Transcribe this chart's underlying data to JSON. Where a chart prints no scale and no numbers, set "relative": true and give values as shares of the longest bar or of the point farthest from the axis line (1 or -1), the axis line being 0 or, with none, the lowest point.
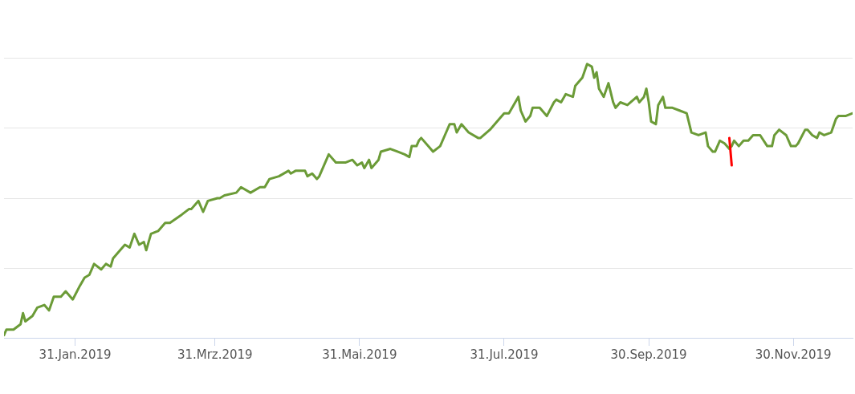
{
  "chart_data": {
    "type": "line",
    "relative": true,
    "grid": "y",
    "legend": false,
    "marker": "none",
    "line_style": "solid",
    "xlim": [
      "2019-01-01",
      "2019-12-25"
    ],
    "xticks": [
      {
        "value": "2019-01-31",
        "label": "31.Jan.2019"
      },
      {
        "value": "2019-03-31",
        "label": "31.Mrz.2019"
      },
      {
        "value": "2019-05-31",
        "label": "31.Mai.2019"
      },
      {
        "value": "2019-07-31",
        "label": "31.Jul.2019"
      },
      {
        "value": "2019-09-30",
        "label": "30.Sep.2019"
      },
      {
        "value": "2019-11-30",
        "label": "30.Nov.2019"
      }
    ],
    "series": [
      {
        "color": "#6b9b37",
        "x": [
          "2019-01-01",
          "2019-01-02",
          "2019-01-05",
          "2019-01-08",
          "2019-01-09",
          "2019-01-10",
          "2019-01-13",
          "2019-01-15",
          "2019-01-18",
          "2019-01-20",
          "2019-01-22",
          "2019-01-25",
          "2019-01-27",
          "2019-01-30",
          "2019-02-02",
          "2019-02-04",
          "2019-02-06",
          "2019-02-08",
          "2019-02-11",
          "2019-02-13",
          "2019-02-15",
          "2019-02-16",
          "2019-02-19",
          "2019-02-21",
          "2019-02-23",
          "2019-02-25",
          "2019-02-27",
          "2019-03-01",
          "2019-03-02",
          "2019-03-04",
          "2019-03-07",
          "2019-03-10",
          "2019-03-12",
          "2019-03-17",
          "2019-03-20",
          "2019-03-21",
          "2019-03-24",
          "2019-03-26",
          "2019-03-28",
          "2019-04-01",
          "2019-04-02",
          "2019-04-04",
          "2019-04-09",
          "2019-04-11",
          "2019-04-15",
          "2019-04-19",
          "2019-04-21",
          "2019-04-23",
          "2019-04-27",
          "2019-05-01",
          "2019-05-02",
          "2019-05-04",
          "2019-05-08",
          "2019-05-09",
          "2019-05-11",
          "2019-05-13",
          "2019-05-14",
          "2019-05-18",
          "2019-05-21",
          "2019-05-25",
          "2019-05-28",
          "2019-05-30",
          "2019-06-01",
          "2019-06-02",
          "2019-06-04",
          "2019-06-05",
          "2019-06-08",
          "2019-06-09",
          "2019-06-13",
          "2019-06-16",
          "2019-06-19",
          "2019-06-21",
          "2019-06-22",
          "2019-06-24",
          "2019-06-25",
          "2019-06-26",
          "2019-06-30",
          "2019-07-01",
          "2019-07-04",
          "2019-07-06",
          "2019-07-08",
          "2019-07-10",
          "2019-07-11",
          "2019-07-13",
          "2019-07-16",
          "2019-07-20",
          "2019-07-21",
          "2019-07-25",
          "2019-07-29",
          "2019-07-31",
          "2019-08-02",
          "2019-08-04",
          "2019-08-06",
          "2019-08-07",
          "2019-08-09",
          "2019-08-11",
          "2019-08-12",
          "2019-08-15",
          "2019-08-18",
          "2019-08-21",
          "2019-08-22",
          "2019-08-24",
          "2019-08-26",
          "2019-08-29",
          "2019-08-30",
          "2019-09-02",
          "2019-09-04",
          "2019-09-06",
          "2019-09-07",
          "2019-09-08",
          "2019-09-09",
          "2019-09-11",
          "2019-09-13",
          "2019-09-15",
          "2019-09-16",
          "2019-09-18",
          "2019-09-21",
          "2019-09-25",
          "2019-09-26",
          "2019-09-28",
          "2019-09-29",
          "2019-09-30",
          "2019-10-01",
          "2019-10-03",
          "2019-10-04",
          "2019-10-06",
          "2019-10-07",
          "2019-10-10",
          "2019-10-13",
          "2019-10-16",
          "2019-10-18",
          "2019-10-21",
          "2019-10-24",
          "2019-10-25",
          "2019-10-27",
          "2019-10-28",
          "2019-10-30",
          "2019-11-01",
          "2019-11-03",
          "2019-11-04",
          "2019-11-05",
          "2019-11-07",
          "2019-11-09",
          "2019-11-11",
          "2019-11-13",
          "2019-11-16",
          "2019-11-19",
          "2019-11-21",
          "2019-11-22",
          "2019-11-24",
          "2019-11-27",
          "2019-11-29",
          "2019-12-01",
          "2019-12-02",
          "2019-12-05",
          "2019-12-06",
          "2019-12-08",
          "2019-12-10",
          "2019-12-11",
          "2019-12-13",
          "2019-12-16",
          "2019-12-18",
          "2019-12-19",
          "2019-12-22",
          "2019-12-25"
        ],
        "values": [
          0.01,
          0.03,
          0.03,
          0.05,
          0.09,
          0.06,
          0.08,
          0.11,
          0.12,
          0.1,
          0.15,
          0.15,
          0.17,
          0.14,
          0.19,
          0.22,
          0.23,
          0.27,
          0.25,
          0.27,
          0.26,
          0.29,
          0.32,
          0.34,
          0.33,
          0.38,
          0.34,
          0.35,
          0.32,
          0.38,
          0.39,
          0.42,
          0.42,
          0.45,
          0.47,
          0.47,
          0.5,
          0.46,
          0.5,
          0.51,
          0.51,
          0.52,
          0.53,
          0.55,
          0.53,
          0.55,
          0.55,
          0.58,
          0.59,
          0.61,
          0.6,
          0.61,
          0.61,
          0.59,
          0.6,
          0.58,
          0.59,
          0.67,
          0.64,
          0.64,
          0.65,
          0.63,
          0.64,
          0.62,
          0.65,
          0.62,
          0.65,
          0.68,
          0.69,
          0.68,
          0.67,
          0.66,
          0.7,
          0.7,
          0.72,
          0.73,
          0.69,
          0.68,
          0.7,
          0.74,
          0.78,
          0.78,
          0.75,
          0.78,
          0.75,
          0.73,
          0.73,
          0.76,
          0.8,
          0.82,
          0.82,
          0.85,
          0.88,
          0.83,
          0.79,
          0.81,
          0.84,
          0.84,
          0.81,
          0.86,
          0.87,
          0.86,
          0.89,
          0.88,
          0.92,
          0.95,
          1.0,
          0.99,
          0.95,
          0.97,
          0.91,
          0.88,
          0.93,
          0.86,
          0.84,
          0.86,
          0.85,
          0.88,
          0.86,
          0.88,
          0.91,
          0.86,
          0.79,
          0.78,
          0.85,
          0.88,
          0.84,
          0.84,
          0.83,
          0.82,
          0.75,
          0.74,
          0.75,
          0.7,
          0.68,
          0.68,
          0.72,
          0.71,
          0.69,
          0.7,
          0.72,
          0.7,
          0.72,
          0.72,
          0.74,
          0.74,
          0.7,
          0.7,
          0.74,
          0.76,
          0.74,
          0.7,
          0.7,
          0.71,
          0.76,
          0.76,
          0.74,
          0.73,
          0.75,
          0.74,
          0.75,
          0.8,
          0.81,
          0.81,
          0.82
        ]
      },
      {
        "color": "#ff0000",
        "x": [
          "2019-11-03",
          "2019-11-04"
        ],
        "values": [
          0.73,
          0.63
        ]
      }
    ]
  }
}
